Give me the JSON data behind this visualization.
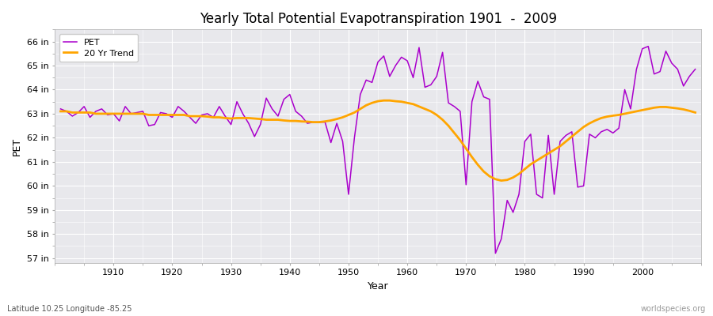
{
  "title": "Yearly Total Potential Evapotranspiration 1901  -  2009",
  "xlabel": "Year",
  "ylabel": "PET",
  "lat_lon_label": "Latitude 10.25 Longitude -85.25",
  "watermark": "worldspecies.org",
  "pet_color": "#AA00CC",
  "trend_color": "#FFA500",
  "fig_bg_color": "#FFFFFF",
  "plot_bg_color": "#E8E8EC",
  "ylim": [
    56.8,
    66.5
  ],
  "yticks": [
    57,
    58,
    59,
    60,
    61,
    62,
    63,
    64,
    65,
    66
  ],
  "xlim": [
    1900,
    2010
  ],
  "xticks": [
    1910,
    1920,
    1930,
    1940,
    1950,
    1960,
    1970,
    1980,
    1990,
    2000
  ],
  "years": [
    1901,
    1902,
    1903,
    1904,
    1905,
    1906,
    1907,
    1908,
    1909,
    1910,
    1911,
    1912,
    1913,
    1914,
    1915,
    1916,
    1917,
    1918,
    1919,
    1920,
    1921,
    1922,
    1923,
    1924,
    1925,
    1926,
    1927,
    1928,
    1929,
    1930,
    1931,
    1932,
    1933,
    1934,
    1935,
    1936,
    1937,
    1938,
    1939,
    1940,
    1941,
    1942,
    1943,
    1944,
    1945,
    1946,
    1947,
    1948,
    1949,
    1950,
    1951,
    1952,
    1953,
    1954,
    1955,
    1956,
    1957,
    1958,
    1959,
    1960,
    1961,
    1962,
    1963,
    1964,
    1965,
    1966,
    1967,
    1968,
    1969,
    1970,
    1971,
    1972,
    1973,
    1974,
    1975,
    1976,
    1977,
    1978,
    1979,
    1980,
    1981,
    1982,
    1983,
    1984,
    1985,
    1986,
    1987,
    1988,
    1989,
    1990,
    1991,
    1992,
    1993,
    1994,
    1995,
    1996,
    1997,
    1998,
    1999,
    2000,
    2001,
    2002,
    2003,
    2004,
    2005,
    2006,
    2007,
    2008,
    2009
  ],
  "pet_values": [
    63.2,
    63.1,
    62.9,
    63.05,
    63.3,
    62.85,
    63.1,
    63.2,
    62.95,
    63.0,
    62.7,
    63.3,
    63.0,
    63.05,
    63.1,
    62.5,
    62.55,
    63.05,
    63.0,
    62.85,
    63.3,
    63.1,
    62.85,
    62.6,
    62.95,
    63.0,
    62.85,
    63.3,
    62.9,
    62.55,
    63.5,
    63.0,
    62.6,
    62.05,
    62.55,
    63.65,
    63.2,
    62.9,
    63.6,
    63.8,
    63.1,
    62.9,
    62.6,
    62.65,
    62.65,
    62.65,
    61.8,
    62.6,
    61.85,
    59.65,
    62.0,
    63.8,
    64.4,
    64.3,
    65.15,
    65.4,
    64.55,
    65.0,
    65.35,
    65.2,
    64.5,
    65.75,
    64.1,
    64.2,
    64.55,
    65.55,
    63.45,
    63.3,
    63.1,
    60.05,
    63.5,
    64.35,
    63.7,
    63.6,
    57.2,
    57.8,
    59.4,
    58.9,
    59.65,
    61.85,
    62.15,
    59.65,
    59.5,
    62.1,
    59.65,
    61.85,
    62.1,
    62.25,
    59.95,
    60.0,
    62.15,
    62.0,
    62.25,
    62.35,
    62.2,
    62.4,
    64.0,
    63.2,
    64.85,
    65.7,
    65.8,
    64.65,
    64.75,
    65.6,
    65.1,
    64.85,
    64.15,
    64.55,
    64.85
  ],
  "trend_values": [
    63.1,
    63.1,
    63.05,
    63.05,
    63.05,
    63.05,
    63.0,
    63.0,
    63.0,
    63.0,
    63.0,
    63.0,
    63.0,
    63.0,
    63.0,
    62.95,
    62.95,
    62.95,
    62.95,
    62.95,
    62.95,
    62.95,
    62.9,
    62.9,
    62.9,
    62.88,
    62.85,
    62.85,
    62.82,
    62.8,
    62.82,
    62.82,
    62.82,
    62.8,
    62.78,
    62.75,
    62.75,
    62.75,
    62.72,
    62.7,
    62.7,
    62.68,
    62.67,
    62.65,
    62.65,
    62.68,
    62.72,
    62.78,
    62.85,
    62.95,
    63.05,
    63.2,
    63.35,
    63.45,
    63.52,
    63.55,
    63.55,
    63.52,
    63.5,
    63.45,
    63.4,
    63.3,
    63.2,
    63.1,
    62.95,
    62.75,
    62.5,
    62.2,
    61.9,
    61.55,
    61.2,
    60.88,
    60.6,
    60.4,
    60.28,
    60.22,
    60.25,
    60.35,
    60.5,
    60.7,
    60.9,
    61.05,
    61.2,
    61.35,
    61.5,
    61.65,
    61.85,
    62.05,
    62.25,
    62.45,
    62.6,
    62.72,
    62.82,
    62.88,
    62.92,
    62.95,
    63.0,
    63.05,
    63.1,
    63.15,
    63.2,
    63.25,
    63.28,
    63.28,
    63.25,
    63.22,
    63.18,
    63.12,
    63.05
  ]
}
